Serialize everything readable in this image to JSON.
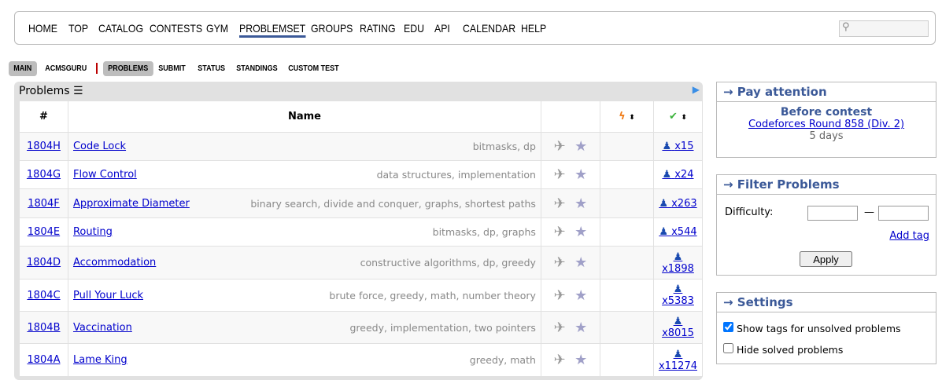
{
  "nav": {
    "items": [
      "HOME",
      "TOP",
      "CATALOG",
      "CONTESTS",
      "GYM",
      "PROBLEMSET",
      "GROUPS",
      "RATING",
      "EDU",
      "API",
      "CALENDAR",
      "HELP"
    ],
    "active": "PROBLEMSET"
  },
  "subnav": {
    "items": [
      "MAIN",
      "ACMSGURU",
      "PROBLEMS",
      "SUBMIT",
      "STATUS",
      "STANDINGS",
      "CUSTOM TEST"
    ]
  },
  "problems": {
    "title": "Problems",
    "headers": {
      "id": "#",
      "name": "Name"
    },
    "rows": [
      {
        "id": "1804H",
        "name": "Code Lock",
        "tags": "bitmasks, dp",
        "solved": "x15"
      },
      {
        "id": "1804G",
        "name": "Flow Control",
        "tags": "data structures, implementation",
        "solved": "x24"
      },
      {
        "id": "1804F",
        "name": "Approximate Diameter",
        "tags": "binary search, divide and conquer, graphs, shortest paths",
        "solved": "x263"
      },
      {
        "id": "1804E",
        "name": "Routing",
        "tags": "bitmasks, dp, graphs",
        "solved": "x544"
      },
      {
        "id": "1804D",
        "name": "Accommodation",
        "tags": "constructive algorithms, dp, greedy",
        "solved": "x1898"
      },
      {
        "id": "1804C",
        "name": "Pull Your Luck",
        "tags": "brute force, greedy, math, number theory",
        "solved": "x5383"
      },
      {
        "id": "1804B",
        "name": "Vaccination",
        "tags": "greedy, implementation, two pointers",
        "solved": "x8015"
      },
      {
        "id": "1804A",
        "name": "Lame King",
        "tags": "greedy, math",
        "solved": "x11274"
      }
    ]
  },
  "pay": {
    "title": "→ Pay attention",
    "before": "Before contest",
    "contest": "Codeforces Round 858 (Div. 2)",
    "when": "5 days"
  },
  "filter": {
    "title": "→ Filter Problems",
    "difficulty": "Difficulty:",
    "dash": "—",
    "add_tag": "Add tag",
    "apply": "Apply"
  },
  "settings": {
    "title": "→ Settings",
    "show_tags": "Show tags for unsolved problems",
    "show_tags_checked": true,
    "hide_solved": "Hide solved problems",
    "hide_solved_checked": false
  }
}
